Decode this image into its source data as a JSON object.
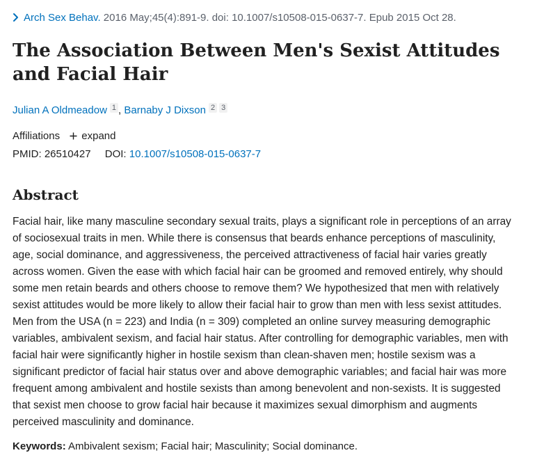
{
  "citation": {
    "journal": "Arch Sex Behav.",
    "details": " 2016 May;45(4):891-9. doi: 10.1007/s10508-015-0637-7. Epub 2015 Oct 28."
  },
  "article": {
    "title": "The Association Between Men's Sexist Attitudes and Facial Hair"
  },
  "authors": [
    {
      "name": "Julian A Oldmeadow",
      "affiliations": "1"
    },
    {
      "name": "Barnaby J Dixson",
      "affiliations_a": "2",
      "affiliations_b": "3"
    }
  ],
  "affiliations": {
    "label": "Affiliations",
    "toggle": "expand"
  },
  "identifiers": {
    "pmid_label": "PMID:",
    "pmid": "26510427",
    "doi_label": "DOI:",
    "doi": "10.1007/s10508-015-0637-7"
  },
  "abstract": {
    "heading": "Abstract",
    "text": "Facial hair, like many masculine secondary sexual traits, plays a significant role in perceptions of an array of sociosexual traits in men. While there is consensus that beards enhance perceptions of masculinity, age, social dominance, and aggressiveness, the perceived attractiveness of facial hair varies greatly across women. Given the ease with which facial hair can be groomed and removed entirely, why should some men retain beards and others choose to remove them? We hypothesized that men with relatively sexist attitudes would be more likely to allow their facial hair to grow than men with less sexist attitudes. Men from the USA (n = 223) and India (n = 309) completed an online survey measuring demographic variables, ambivalent sexism, and facial hair status. After controlling for demographic variables, men with facial hair were significantly higher in hostile sexism than clean-shaven men; hostile sexism was a significant predictor of facial hair status over and above demographic variables; and facial hair was more frequent among ambivalent and hostile sexists than among benevolent and non-sexists. It is suggested that sexist men choose to grow facial hair because it maximizes sexual dimorphism and augments perceived masculinity and dominance."
  },
  "keywords": {
    "label": "Keywords:",
    "text": " Ambivalent sexism; Facial hair; Masculinity; Social dominance."
  },
  "colors": {
    "link": "#0071bc",
    "text": "#212121",
    "muted": "#5b616b"
  },
  "icons": {
    "chevron": "chevron-right-icon",
    "plus": "plus-icon"
  }
}
